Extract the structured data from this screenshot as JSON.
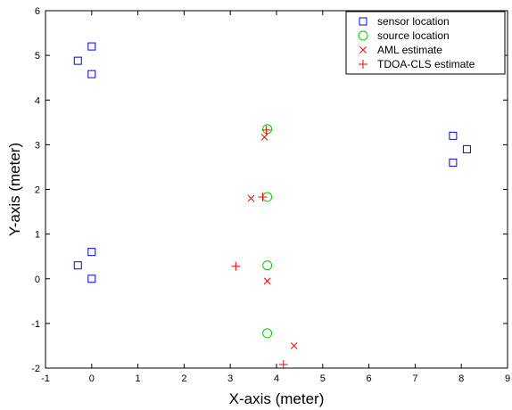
{
  "chart_data": {
    "type": "scatter",
    "xlabel": "X-axis (meter)",
    "ylabel": "Y-axis (meter)",
    "xlim": [
      -1,
      9
    ],
    "ylim": [
      -2,
      6
    ],
    "xticks": [
      "-1",
      "0",
      "1",
      "2",
      "3",
      "4",
      "5",
      "6",
      "7",
      "8",
      "9"
    ],
    "yticks": [
      "-2",
      "-1",
      "0",
      "1",
      "2",
      "3",
      "4",
      "5",
      "6"
    ],
    "grid": false,
    "legend_position": "top-right",
    "series": [
      {
        "name": "sensor location",
        "marker": "square",
        "color": "#0000ff",
        "points": [
          [
            -0.3,
            4.88
          ],
          [
            0.0,
            5.2
          ],
          [
            0.0,
            4.58
          ],
          [
            -0.3,
            0.3
          ],
          [
            0.0,
            0.6
          ],
          [
            0.0,
            0.0
          ],
          [
            7.82,
            3.2
          ],
          [
            8.12,
            2.9
          ],
          [
            7.82,
            2.6
          ]
        ]
      },
      {
        "name": "source location",
        "marker": "circle",
        "color": "#00cc00",
        "points": [
          [
            3.8,
            3.35
          ],
          [
            3.8,
            1.83
          ],
          [
            3.8,
            0.3
          ],
          [
            3.8,
            -1.22
          ]
        ]
      },
      {
        "name": "AML estimate",
        "marker": "x",
        "color": "#ff0000",
        "points": [
          [
            3.74,
            3.17
          ],
          [
            3.45,
            1.8
          ],
          [
            3.8,
            -0.05
          ],
          [
            4.38,
            -1.5
          ]
        ]
      },
      {
        "name": "TDOA-CLS estimate",
        "marker": "plus",
        "color": "#ff0000",
        "points": [
          [
            3.78,
            3.33
          ],
          [
            3.7,
            1.83
          ],
          [
            3.12,
            0.28
          ],
          [
            4.15,
            -1.92
          ]
        ]
      }
    ]
  }
}
